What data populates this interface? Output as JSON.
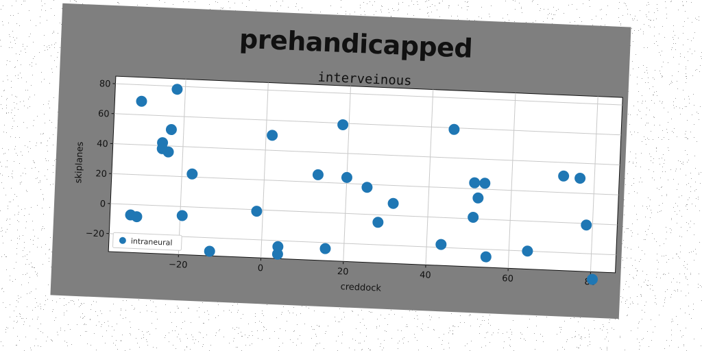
{
  "chart_data": {
    "type": "scatter",
    "title": "prehandicapped",
    "subtitle": "interveinous",
    "xlabel": "creddock",
    "ylabel": "skiplanes",
    "xlim": [
      -37,
      86
    ],
    "ylim": [
      -32,
      85
    ],
    "xticks": [
      -20,
      0,
      20,
      40,
      60,
      80
    ],
    "yticks": [
      -20,
      0,
      20,
      40,
      60,
      80
    ],
    "grid": true,
    "legend_position": "lower-left",
    "series": [
      {
        "name": "intraneural",
        "color": "#1f77b4",
        "points": [
          [
            -30.5,
            69
          ],
          [
            -22,
            78
          ],
          [
            -23,
            51
          ],
          [
            -25,
            42
          ],
          [
            -25,
            38
          ],
          [
            -23.5,
            36
          ],
          [
            -17.5,
            22
          ],
          [
            -19.5,
            -6
          ],
          [
            -32,
            -7
          ],
          [
            -30.5,
            -8
          ],
          [
            -12.5,
            -29
          ],
          [
            -1.5,
            -1
          ],
          [
            1.5,
            50
          ],
          [
            4,
            -24
          ],
          [
            4,
            -29
          ],
          [
            13,
            25
          ],
          [
            15.5,
            -24
          ],
          [
            18.5,
            59
          ],
          [
            20,
            24
          ],
          [
            25,
            18
          ],
          [
            28,
            -5
          ],
          [
            31.5,
            8
          ],
          [
            43.5,
            -18
          ],
          [
            45.5,
            59
          ],
          [
            51,
            24
          ],
          [
            53.5,
            24
          ],
          [
            52,
            14
          ],
          [
            51,
            1
          ],
          [
            54.5,
            -25
          ],
          [
            64.5,
            -20
          ],
          [
            72.5,
            31
          ],
          [
            76.5,
            30
          ],
          [
            78.5,
            -1
          ],
          [
            80.5,
            -37
          ]
        ]
      }
    ]
  }
}
